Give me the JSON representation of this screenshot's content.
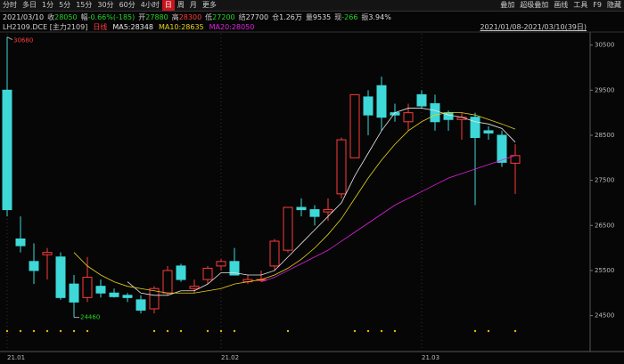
{
  "toolbar": {
    "left": [
      "分时",
      "多日",
      "1分",
      "5分",
      "15分",
      "30分",
      "60分",
      "4小时",
      "日",
      "周",
      "月",
      "更多"
    ],
    "active": 8,
    "right": [
      "叠加",
      "超级叠加",
      "画线",
      "工具",
      "F9",
      "隐藏"
    ]
  },
  "info": {
    "date": "2021/03/10",
    "fields": [
      {
        "label": "收",
        "value": "28050",
        "color": "#22d522"
      },
      {
        "label": "幅",
        "value": "-0.66%(-185)",
        "color": "#22d522"
      },
      {
        "label": "开",
        "value": "27880",
        "color": "#22d522"
      },
      {
        "label": "高",
        "value": "28300",
        "color": "#ff3b3b"
      },
      {
        "label": "低",
        "value": "27200",
        "color": "#22d522"
      },
      {
        "label": "结",
        "value": "27700",
        "color": "#dddddd"
      },
      {
        "label": "仓",
        "value": "1.26万",
        "color": "#dddddd"
      },
      {
        "label": "量",
        "value": "9535",
        "color": "#dddddd"
      },
      {
        "label": "现",
        "value": "-266",
        "color": "#22d522"
      },
      {
        "label": "振",
        "value": "3.94%",
        "color": "#dddddd"
      }
    ]
  },
  "chart_data": {
    "type": "candlestick",
    "symbol": "LH2109.DCE [主力2109]",
    "period": "日线",
    "range_label": "2021/01/08-2021/03/10(39日)",
    "categories": [
      "21.01",
      null,
      null,
      null,
      null,
      null,
      null,
      null,
      null,
      null,
      null,
      null,
      null,
      null,
      null,
      null,
      "21.02",
      null,
      null,
      null,
      null,
      null,
      null,
      null,
      null,
      null,
      null,
      null,
      null,
      null,
      null,
      "21.03",
      null,
      null,
      null,
      null,
      null,
      null,
      null
    ],
    "open": [
      29500,
      26200,
      25700,
      25850,
      25800,
      25200,
      24900,
      25150,
      25000,
      24950,
      24850,
      24650,
      25000,
      25600,
      25100,
      25300,
      25600,
      25700,
      25250,
      25300,
      25600,
      25950,
      26900,
      26850,
      26800,
      27200,
      28000,
      29350,
      29600,
      29000,
      28800,
      29400,
      29200,
      29000,
      28850,
      28900,
      28600,
      28500,
      27880
    ],
    "high": [
      30680,
      26700,
      26100,
      26000,
      25900,
      25400,
      25800,
      25300,
      25100,
      25000,
      24950,
      25150,
      25600,
      25650,
      25300,
      25600,
      25750,
      26000,
      25400,
      25500,
      26200,
      26900,
      27100,
      26950,
      27100,
      28450,
      29400,
      29500,
      29800,
      29200,
      29200,
      29500,
      29400,
      29050,
      29000,
      29000,
      28700,
      28600,
      28300
    ],
    "low": [
      26700,
      25900,
      25200,
      25300,
      24850,
      24460,
      24800,
      24900,
      24900,
      24800,
      24550,
      24550,
      24950,
      25250,
      25000,
      25200,
      25500,
      25400,
      25200,
      25250,
      25500,
      25900,
      26700,
      26500,
      26600,
      27100,
      28000,
      28500,
      28600,
      28800,
      28600,
      29100,
      28600,
      28600,
      28400,
      26950,
      28400,
      27800,
      27200
    ],
    "close": [
      26850,
      26050,
      25500,
      25900,
      24900,
      24800,
      25350,
      25000,
      24920,
      24900,
      24620,
      25100,
      25500,
      25300,
      25150,
      25550,
      25700,
      25400,
      25300,
      25300,
      26150,
      26900,
      26850,
      26700,
      26850,
      28400,
      29400,
      28950,
      28900,
      28950,
      29000,
      29150,
      28800,
      28850,
      28900,
      28450,
      28550,
      27900,
      28050
    ],
    "max_label": "30680",
    "min_label": "24460",
    "up_color": "#ff3b3b",
    "down_color": "#3ed8d8",
    "ma": [
      {
        "name": "MA5",
        "legend_label": "MA5:28348",
        "color": "#e8e8e8",
        "values": [
          null,
          null,
          null,
          null,
          null,
          null,
          null,
          null,
          null,
          25250,
          25000,
          24950,
          24950,
          25050,
          25050,
          25200,
          25450,
          25450,
          25400,
          25400,
          25500,
          25800,
          26100,
          26400,
          26700,
          27000,
          27600,
          28100,
          28600,
          29000,
          29100,
          29100,
          29050,
          28950,
          28900,
          28800,
          28750,
          28650,
          28348
        ]
      },
      {
        "name": "MA10",
        "legend_label": "MA10:28635",
        "color": "#e6d21e",
        "values": [
          null,
          null,
          null,
          null,
          null,
          25900,
          25600,
          25400,
          25250,
          25150,
          25100,
          25050,
          25000,
          25000,
          25000,
          25050,
          25100,
          25200,
          25250,
          25300,
          25400,
          25550,
          25750,
          26000,
          26300,
          26650,
          27100,
          27550,
          27950,
          28300,
          28600,
          28800,
          28950,
          29000,
          29000,
          28950,
          28850,
          28750,
          28635
        ]
      },
      {
        "name": "MA20",
        "legend_label": "MA20:28050",
        "color": "#e020e0",
        "values": [
          null,
          null,
          null,
          null,
          null,
          null,
          null,
          null,
          null,
          null,
          null,
          null,
          null,
          null,
          null,
          null,
          null,
          null,
          null,
          25250,
          25350,
          25500,
          25650,
          25800,
          25950,
          26150,
          26350,
          26550,
          26750,
          26950,
          27100,
          27250,
          27400,
          27550,
          27650,
          27750,
          27850,
          27950,
          28050
        ]
      }
    ],
    "ylim": [
      23900,
      30750
    ],
    "yticks": [
      24500,
      25500,
      26500,
      27500,
      28500,
      29500,
      30500
    ]
  }
}
